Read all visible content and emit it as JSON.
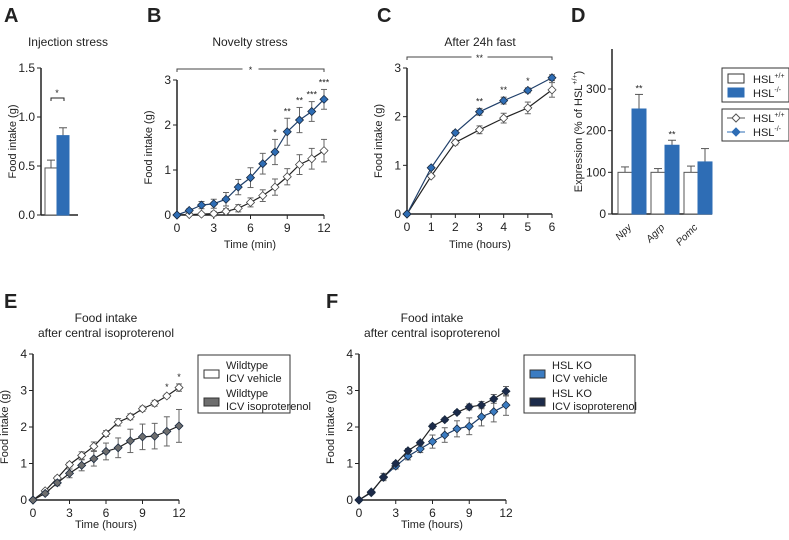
{
  "colors": {
    "wt": "#ffffff",
    "ko": "#2e6db5",
    "iso_wt": "#6e6e6e",
    "ko_vehicle": "#3b7cc2",
    "ko_iso": "#1c2b4a"
  },
  "chart_data": [
    {
      "panel": "A",
      "type": "bar",
      "title": "Injection stress",
      "ylabel": "Food intake (g)",
      "ylim": [
        0,
        1.5
      ],
      "yticks": [
        "0.0",
        "0.5",
        "1.0",
        "1.5"
      ],
      "categories": [
        ""
      ],
      "series": [
        {
          "values": [
            0.48
          ],
          "errors": [
            0.08
          ],
          "color_key": "wt"
        },
        {
          "values": [
            0.81
          ],
          "errors": [
            0.08
          ],
          "color_key": "ko"
        }
      ],
      "significance": "*"
    },
    {
      "panel": "B",
      "type": "line",
      "title": "Novelty stress",
      "xlabel": "Time (min)",
      "ylabel": "Food intake (g)",
      "ylim": [
        0,
        3
      ],
      "xlim": [
        0,
        12
      ],
      "yticks": [
        "0",
        "1",
        "2",
        "3"
      ],
      "xticks": [
        "0",
        "3",
        "6",
        "9",
        "12"
      ],
      "x": [
        0,
        1,
        2,
        3,
        4,
        5,
        6,
        7,
        8,
        9,
        10,
        11,
        12
      ],
      "series": [
        {
          "values": [
            0,
            0.01,
            0.02,
            0.03,
            0.08,
            0.15,
            0.28,
            0.43,
            0.62,
            0.85,
            1.12,
            1.25,
            1.43
          ],
          "errors": [
            0,
            0.02,
            0.03,
            0.05,
            0.06,
            0.08,
            0.1,
            0.13,
            0.18,
            0.18,
            0.22,
            0.23,
            0.25
          ],
          "color_key": "wt",
          "marker": "diamond-open"
        },
        {
          "values": [
            0,
            0.1,
            0.22,
            0.25,
            0.35,
            0.62,
            0.83,
            1.14,
            1.4,
            1.85,
            2.11,
            2.3,
            2.57
          ],
          "errors": [
            0,
            0.04,
            0.08,
            0.1,
            0.15,
            0.17,
            0.22,
            0.23,
            0.28,
            0.3,
            0.28,
            0.22,
            0.22
          ],
          "color_key": "ko",
          "marker": "diamond"
        }
      ],
      "point_stars": {
        "8": "*",
        "9": "**",
        "10": "**",
        "11": "***",
        "12": "***"
      },
      "overall_significance": "*"
    },
    {
      "panel": "C",
      "type": "line",
      "title": "After 24h fast",
      "xlabel": "Time (hours)",
      "ylabel": "Food intake (g)",
      "ylim": [
        0,
        3
      ],
      "xlim": [
        0,
        6
      ],
      "yticks": [
        "0",
        "1",
        "2",
        "3"
      ],
      "xticks": [
        "0",
        "1",
        "2",
        "3",
        "4",
        "5",
        "6"
      ],
      "x": [
        0,
        1,
        2,
        3,
        4,
        5,
        6
      ],
      "series": [
        {
          "values": [
            0,
            0.78,
            1.47,
            1.73,
            1.97,
            2.18,
            2.55
          ],
          "errors": [
            0,
            0.03,
            0.05,
            0.08,
            0.1,
            0.12,
            0.15
          ],
          "color_key": "wt",
          "marker": "diamond-open"
        },
        {
          "values": [
            0,
            0.95,
            1.67,
            2.1,
            2.33,
            2.54,
            2.8
          ],
          "errors": [
            0,
            0.03,
            0.04,
            0.07,
            0.07,
            0.05,
            0.06
          ],
          "color_key": "ko",
          "marker": "diamond"
        }
      ],
      "point_stars": {
        "3": "**",
        "4": "**",
        "5": "*"
      },
      "overall_significance": "**"
    },
    {
      "panel": "D",
      "type": "bar",
      "ylabel": "Expression (% of HSL+/+)",
      "ylim": [
        0,
        350
      ],
      "yticks": [
        "0",
        "100",
        "200",
        "300"
      ],
      "categories": [
        "Npy",
        "Agrp",
        "Pomc"
      ],
      "series": [
        {
          "values": [
            100,
            100,
            100
          ],
          "errors": [
            13,
            9,
            15
          ],
          "color_key": "wt"
        },
        {
          "values": [
            252,
            165,
            125
          ],
          "errors": [
            35,
            12,
            32
          ],
          "color_key": "ko"
        }
      ],
      "bar_stars": [
        "**",
        "**",
        ""
      ],
      "legend": [
        {
          "label": "HSL",
          "sup": "+/+",
          "color_key": "wt",
          "kind": "box"
        },
        {
          "label": "HSL",
          "sup": "-/-",
          "color_key": "ko",
          "kind": "box"
        },
        {
          "label": "HSL",
          "sup": "+/+",
          "color_key": "wt",
          "kind": "line"
        },
        {
          "label": "HSL",
          "sup": "-/-",
          "color_key": "ko",
          "kind": "line"
        }
      ]
    },
    {
      "panel": "E",
      "type": "line",
      "title": [
        "Food intake",
        "after central isoproterenol"
      ],
      "xlabel": "Time (hours)",
      "ylabel": "Food intake (g)",
      "ylim": [
        0,
        4
      ],
      "xlim": [
        0,
        12
      ],
      "yticks": [
        "0",
        "1",
        "2",
        "3",
        "4"
      ],
      "xticks": [
        "0",
        "3",
        "6",
        "9",
        "12"
      ],
      "x": [
        0,
        1,
        2,
        3,
        4,
        5,
        6,
        7,
        8,
        9,
        10,
        11,
        12
      ],
      "series": [
        {
          "name": [
            "Wildtype",
            "ICV vehicle"
          ],
          "values": [
            0,
            0.25,
            0.6,
            0.97,
            1.22,
            1.47,
            1.82,
            2.13,
            2.28,
            2.5,
            2.65,
            2.85,
            3.08
          ],
          "errors": [
            0,
            0.04,
            0.05,
            0.06,
            0.1,
            0.12,
            0.08,
            0.1,
            0.08,
            0.07,
            0.08,
            0.05,
            0.1
          ],
          "color_key": "wt",
          "marker": "diamond-open"
        },
        {
          "name": [
            "Wildtype",
            "ICV isoproterenol"
          ],
          "values": [
            0,
            0.18,
            0.47,
            0.73,
            0.95,
            1.13,
            1.33,
            1.43,
            1.62,
            1.73,
            1.75,
            1.88,
            2.03
          ],
          "errors": [
            0,
            0.05,
            0.08,
            0.12,
            0.15,
            0.2,
            0.23,
            0.27,
            0.32,
            0.35,
            0.35,
            0.4,
            0.45
          ],
          "color_key": "iso_wt",
          "marker": "diamond"
        }
      ],
      "point_stars": {
        "11": "*",
        "12": "*"
      }
    },
    {
      "panel": "F",
      "type": "line",
      "title": [
        "Food intake",
        "after central isoproterenol"
      ],
      "xlabel": "Time (hours)",
      "ylabel": "Food intake (g)",
      "ylim": [
        0,
        4
      ],
      "xlim": [
        0,
        12
      ],
      "yticks": [
        "0",
        "1",
        "2",
        "3",
        "4"
      ],
      "xticks": [
        "0",
        "3",
        "6",
        "9",
        "12"
      ],
      "x": [
        0,
        1,
        2,
        3,
        4,
        5,
        6,
        7,
        8,
        9,
        10,
        11,
        12
      ],
      "series": [
        {
          "name": [
            "HSL KO",
            "ICV vehicle"
          ],
          "values": [
            0,
            0.2,
            0.63,
            0.93,
            1.2,
            1.4,
            1.6,
            1.78,
            1.95,
            2.02,
            2.28,
            2.42,
            2.6
          ],
          "errors": [
            0,
            0.03,
            0.1,
            0.08,
            0.1,
            0.1,
            0.18,
            0.2,
            0.22,
            0.23,
            0.25,
            0.28,
            0.28
          ],
          "color_key": "ko_vehicle",
          "marker": "diamond"
        },
        {
          "name": [
            "HSL KO",
            "ICV isoproterenol"
          ],
          "values": [
            0,
            0.22,
            0.62,
            1.0,
            1.35,
            1.57,
            2.02,
            2.2,
            2.4,
            2.55,
            2.6,
            2.77,
            2.98
          ],
          "errors": [
            0,
            0.03,
            0.05,
            0.05,
            0.06,
            0.05,
            0.06,
            0.05,
            0.05,
            0.08,
            0.1,
            0.12,
            0.13
          ],
          "color_key": "ko_iso",
          "marker": "diamond"
        }
      ],
      "point_stars": {}
    }
  ]
}
